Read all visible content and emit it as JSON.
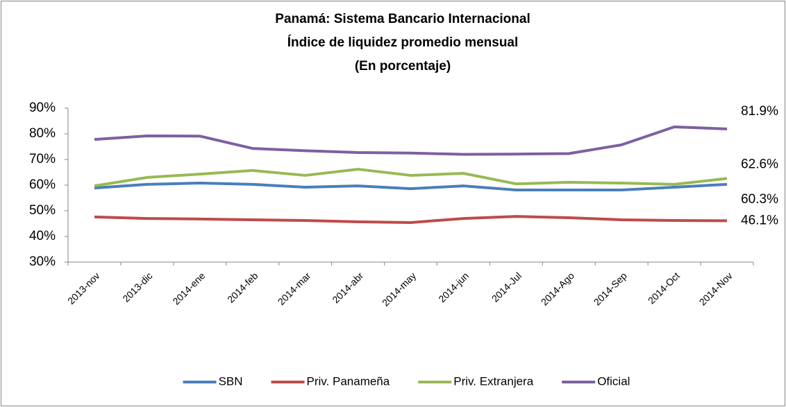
{
  "chart_data": {
    "type": "line",
    "title": [
      "Panamá: Sistema Bancario Internacional",
      "Índice de liquidez promedio mensual",
      "(En porcentaje)"
    ],
    "categories": [
      "2013-nov",
      "2013-dic",
      "2014-ene",
      "2014-feb",
      "2014-mar",
      "2014-abr",
      "2014-may",
      "2014-jun",
      "2014-Jul",
      "2014-Ago",
      "2014-Sep",
      "2014-Oct",
      "2014-Nov"
    ],
    "series": [
      {
        "name": "SBN",
        "color": "#4a7ebb",
        "values": [
          58.9,
          60.3,
          60.8,
          60.3,
          59.2,
          59.7,
          58.6,
          59.7,
          58.1,
          58.1,
          58.1,
          59.2,
          60.3
        ],
        "value_labels": [
          null,
          null,
          null,
          null,
          null,
          null,
          null,
          null,
          null,
          null,
          null,
          null,
          "60.3%"
        ]
      },
      {
        "name": "Priv. Panameña",
        "color": "#be4b48",
        "values": [
          47.6,
          47.0,
          46.8,
          46.5,
          46.2,
          45.7,
          45.4,
          47.0,
          47.8,
          47.3,
          46.5,
          46.2,
          46.1
        ],
        "value_labels": [
          null,
          null,
          null,
          null,
          null,
          null,
          null,
          null,
          null,
          null,
          null,
          null,
          "46.1%"
        ]
      },
      {
        "name": "Priv. Extranjera",
        "color": "#98b954",
        "values": [
          59.7,
          63.0,
          64.3,
          65.7,
          63.8,
          66.2,
          63.8,
          64.6,
          60.5,
          61.1,
          60.8,
          60.3,
          62.6
        ],
        "value_labels": [
          null,
          null,
          null,
          null,
          null,
          null,
          null,
          null,
          null,
          null,
          null,
          null,
          "62.6%"
        ]
      },
      {
        "name": "Oficial",
        "color": "#7d60a0",
        "values": [
          77.8,
          79.2,
          79.1,
          74.3,
          73.4,
          72.7,
          72.5,
          72.0,
          72.1,
          72.3,
          75.7,
          82.7,
          81.9
        ],
        "value_labels": [
          null,
          null,
          null,
          null,
          null,
          null,
          null,
          null,
          null,
          null,
          null,
          null,
          "81.9%"
        ]
      }
    ],
    "ylim": [
      30,
      90
    ],
    "yticks": [
      {
        "value": 30,
        "label": "30%"
      },
      {
        "value": 40,
        "label": "40%"
      },
      {
        "value": 50,
        "label": "50%"
      },
      {
        "value": 60,
        "label": "60%"
      },
      {
        "value": 70,
        "label": "70%"
      },
      {
        "value": 80,
        "label": "80%"
      },
      {
        "value": 90,
        "label": "90%"
      }
    ],
    "grid": false,
    "legend": "bottom"
  }
}
